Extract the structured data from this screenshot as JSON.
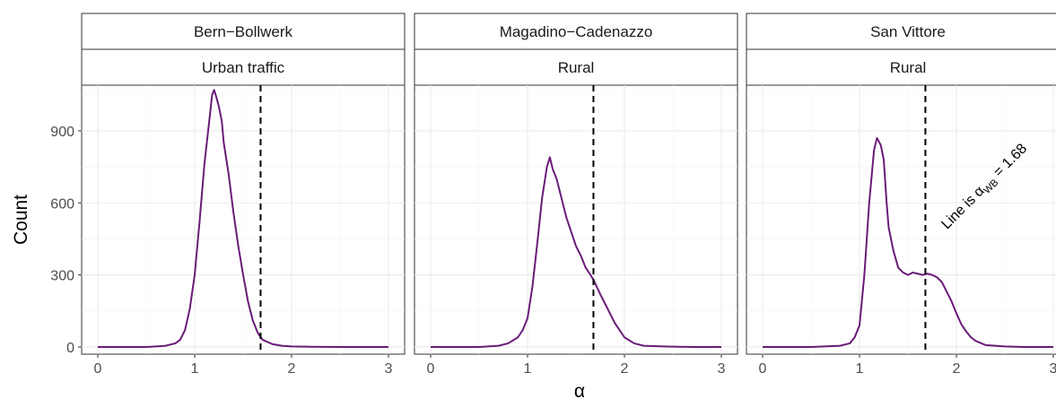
{
  "chart_data": {
    "type": "line",
    "xlabel": "α",
    "ylabel": "Count",
    "xlim": [
      0,
      3
    ],
    "ylim": [
      -30,
      1090
    ],
    "x_ticks": [
      "0",
      "1",
      "2",
      "3"
    ],
    "y_ticks": [
      "0",
      "300",
      "600",
      "900"
    ],
    "x_tick_values": [
      0,
      1,
      2,
      3
    ],
    "y_tick_values": [
      0,
      300,
      600,
      900
    ],
    "reference_line_x": 1.68,
    "line_color": "#6a1b78",
    "annotation": {
      "prefix": "Line is ",
      "symbol": "α",
      "subscript": "WB",
      "suffix": " = 1.68"
    },
    "panels": [
      {
        "station": "Bern−Bollwerk",
        "type": "Urban traffic",
        "points": [
          [
            0,
            0
          ],
          [
            0.5,
            0
          ],
          [
            0.6,
            2
          ],
          [
            0.7,
            5
          ],
          [
            0.8,
            15
          ],
          [
            0.85,
            30
          ],
          [
            0.9,
            70
          ],
          [
            0.95,
            160
          ],
          [
            1.0,
            300
          ],
          [
            1.05,
            520
          ],
          [
            1.1,
            760
          ],
          [
            1.15,
            940
          ],
          [
            1.18,
            1050
          ],
          [
            1.2,
            1070
          ],
          [
            1.22,
            1045
          ],
          [
            1.25,
            1000
          ],
          [
            1.28,
            940
          ],
          [
            1.3,
            850
          ],
          [
            1.35,
            720
          ],
          [
            1.4,
            560
          ],
          [
            1.45,
            420
          ],
          [
            1.5,
            300
          ],
          [
            1.55,
            190
          ],
          [
            1.6,
            110
          ],
          [
            1.65,
            60
          ],
          [
            1.7,
            30
          ],
          [
            1.8,
            12
          ],
          [
            1.9,
            5
          ],
          [
            2.0,
            2
          ],
          [
            2.2,
            1
          ],
          [
            2.5,
            0
          ],
          [
            3.0,
            0
          ]
        ]
      },
      {
        "station": "Magadino−Cadenazzo",
        "type": "Rural",
        "points": [
          [
            0,
            0
          ],
          [
            0.5,
            0
          ],
          [
            0.7,
            5
          ],
          [
            0.8,
            15
          ],
          [
            0.9,
            40
          ],
          [
            0.95,
            70
          ],
          [
            1.0,
            120
          ],
          [
            1.05,
            250
          ],
          [
            1.1,
            430
          ],
          [
            1.15,
            620
          ],
          [
            1.2,
            750
          ],
          [
            1.23,
            790
          ],
          [
            1.26,
            740
          ],
          [
            1.3,
            700
          ],
          [
            1.35,
            620
          ],
          [
            1.4,
            540
          ],
          [
            1.45,
            480
          ],
          [
            1.5,
            420
          ],
          [
            1.55,
            380
          ],
          [
            1.6,
            330
          ],
          [
            1.65,
            300
          ],
          [
            1.68,
            280
          ],
          [
            1.75,
            220
          ],
          [
            1.8,
            180
          ],
          [
            1.85,
            140
          ],
          [
            1.9,
            100
          ],
          [
            1.95,
            70
          ],
          [
            2.0,
            40
          ],
          [
            2.1,
            15
          ],
          [
            2.2,
            5
          ],
          [
            2.4,
            2
          ],
          [
            2.7,
            0
          ],
          [
            3.0,
            0
          ]
        ]
      },
      {
        "station": "San Vittore",
        "type": "Rural",
        "points": [
          [
            0,
            0
          ],
          [
            0.5,
            0
          ],
          [
            0.8,
            5
          ],
          [
            0.9,
            15
          ],
          [
            0.95,
            40
          ],
          [
            1.0,
            90
          ],
          [
            1.05,
            300
          ],
          [
            1.1,
            600
          ],
          [
            1.15,
            820
          ],
          [
            1.18,
            870
          ],
          [
            1.22,
            840
          ],
          [
            1.25,
            780
          ],
          [
            1.28,
            600
          ],
          [
            1.3,
            500
          ],
          [
            1.35,
            400
          ],
          [
            1.4,
            330
          ],
          [
            1.45,
            310
          ],
          [
            1.5,
            300
          ],
          [
            1.55,
            310
          ],
          [
            1.6,
            305
          ],
          [
            1.65,
            300
          ],
          [
            1.7,
            305
          ],
          [
            1.75,
            300
          ],
          [
            1.8,
            290
          ],
          [
            1.85,
            270
          ],
          [
            1.9,
            230
          ],
          [
            1.95,
            190
          ],
          [
            2.0,
            140
          ],
          [
            2.05,
            95
          ],
          [
            2.1,
            65
          ],
          [
            2.15,
            40
          ],
          [
            2.2,
            25
          ],
          [
            2.3,
            8
          ],
          [
            2.5,
            2
          ],
          [
            2.7,
            0
          ],
          [
            3.0,
            0
          ]
        ]
      }
    ]
  }
}
